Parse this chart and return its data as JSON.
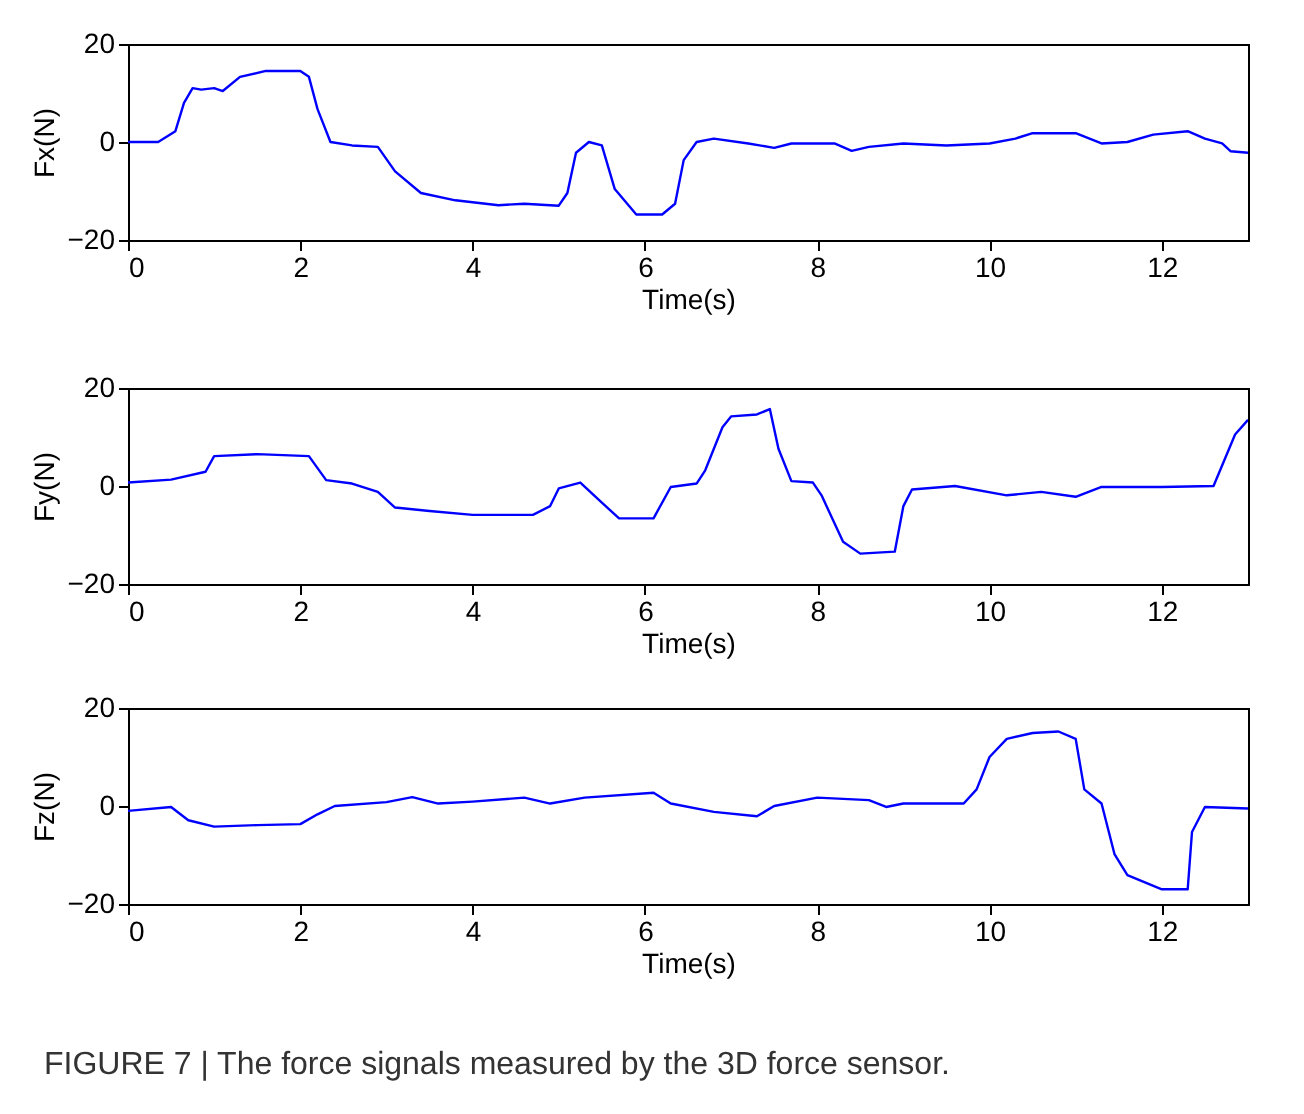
{
  "chart_data": [
    {
      "type": "line",
      "xlabel": "Time(s)",
      "ylabel": "Fx(N)",
      "xlim": [
        0,
        13
      ],
      "xticks": [
        0,
        2,
        4,
        6,
        8,
        10,
        12
      ],
      "ylim": [
        -20,
        20
      ],
      "yticks": [
        -20,
        0,
        20
      ],
      "grid": false,
      "series": [
        {
          "color": "#0000ff",
          "x": [
            0,
            0.35,
            0.55,
            0.65,
            0.75,
            0.85,
            1.0,
            1.1,
            1.3,
            1.6,
            2.0,
            2.1,
            2.2,
            2.35,
            2.6,
            2.9,
            3.1,
            3.4,
            3.8,
            4.3,
            4.6,
            5.0,
            5.1,
            5.2,
            5.35,
            5.5,
            5.65,
            5.9,
            6.2,
            6.35,
            6.45,
            6.6,
            6.8,
            7.2,
            7.5,
            7.7,
            8.2,
            8.4,
            8.6,
            9.0,
            9.5,
            10.0,
            10.3,
            10.5,
            11.0,
            11.3,
            11.6,
            11.9,
            12.3,
            12.5,
            12.7,
            12.8,
            13
          ],
          "values": [
            0,
            0,
            2.2,
            8,
            11,
            10.7,
            11,
            10.4,
            13.3,
            14.5,
            14.5,
            13.3,
            6.7,
            0,
            -0.7,
            -1,
            -6,
            -10.4,
            -11.9,
            -12.9,
            -12.6,
            -13,
            -10.4,
            -2.2,
            0,
            -0.7,
            -9.6,
            -14.8,
            -14.8,
            -12.6,
            -3.7,
            0,
            0.7,
            -0.3,
            -1.2,
            -0.3,
            -0.3,
            -1.8,
            -1,
            -0.3,
            -0.7,
            -0.3,
            0.7,
            1.8,
            1.8,
            -0.3,
            0,
            1.5,
            2.2,
            0.7,
            -0.3,
            -1.9,
            -2.2
          ]
        }
      ]
    },
    {
      "type": "line",
      "xlabel": "Time(s)",
      "ylabel": "Fy(N)",
      "xlim": [
        0,
        13
      ],
      "xticks": [
        0,
        2,
        4,
        6,
        8,
        10,
        12
      ],
      "ylim": [
        -20,
        20
      ],
      "yticks": [
        -20,
        0,
        20
      ],
      "grid": false,
      "series": [
        {
          "color": "#0000ff",
          "x": [
            0,
            0.5,
            0.9,
            1.0,
            1.5,
            2.1,
            2.3,
            2.6,
            2.9,
            3.1,
            3.5,
            4.0,
            4.7,
            4.9,
            5.0,
            5.25,
            5.5,
            5.7,
            6.1,
            6.3,
            6.6,
            6.7,
            6.9,
            7.0,
            7.3,
            7.45,
            7.55,
            7.7,
            7.95,
            8.05,
            8.3,
            8.5,
            8.9,
            9.0,
            9.1,
            9.6,
            10.2,
            10.6,
            11.0,
            11.3,
            12.0,
            12.6,
            12.85,
            13
          ],
          "values": [
            0.7,
            1.3,
            2.9,
            6.1,
            6.5,
            6.1,
            1.2,
            0.5,
            -1.2,
            -4.4,
            -5.1,
            -5.9,
            -5.9,
            -4.1,
            -0.5,
            0.7,
            -3.4,
            -6.6,
            -6.6,
            -0.2,
            0.5,
            3.2,
            12,
            14.2,
            14.6,
            15.7,
            7.6,
            1,
            0.7,
            -1.9,
            -11.4,
            -13.8,
            -13.4,
            -4.1,
            -0.7,
            0,
            -1.9,
            -1.2,
            -2.2,
            -0.2,
            -0.2,
            0,
            10.5,
            13.5
          ]
        }
      ]
    },
    {
      "type": "line",
      "xlabel": "Time(s)",
      "ylabel": "Fz(N)",
      "xlim": [
        0,
        13
      ],
      "xticks": [
        0,
        2,
        4,
        6,
        8,
        10,
        12
      ],
      "ylim": [
        -20,
        20
      ],
      "yticks": [
        -20,
        0,
        20
      ],
      "grid": false,
      "annotations": [
        "FIGURE 7 | The force signals measured by the 3D force sensor."
      ],
      "series": [
        {
          "color": "#0000ff",
          "x": [
            0,
            0.5,
            0.7,
            1.0,
            1.5,
            2.0,
            2.2,
            2.4,
            3.0,
            3.3,
            3.6,
            4.0,
            4.6,
            4.9,
            5.3,
            6.1,
            6.3,
            6.8,
            7.3,
            7.5,
            8.0,
            8.6,
            8.8,
            9.0,
            9.7,
            9.85,
            10.0,
            10.2,
            10.5,
            10.8,
            11.0,
            11.1,
            11.3,
            11.45,
            11.6,
            12.0,
            12.3,
            12.35,
            12.5,
            13
          ],
          "values": [
            -1,
            -0.2,
            -2.9,
            -4.2,
            -3.9,
            -3.7,
            -1.7,
            0,
            0.8,
            1.8,
            0.5,
            0.9,
            1.7,
            0.5,
            1.7,
            2.7,
            0.5,
            -1.2,
            -2.1,
            0,
            1.7,
            1.2,
            -0.2,
            0.5,
            0.5,
            3.4,
            10,
            13.7,
            14.9,
            15.2,
            13.7,
            3.4,
            0.5,
            -9.8,
            -14.1,
            -17,
            -17,
            -5.3,
            -0.2,
            -0.5
          ]
        }
      ]
    }
  ]
}
